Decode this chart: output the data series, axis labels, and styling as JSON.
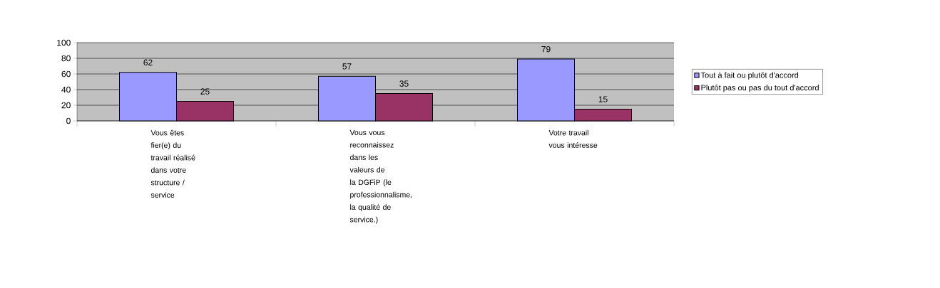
{
  "chart_data": {
    "type": "bar",
    "categories": [
      "Vous êtes fier(e) du travail réalisé dans votre structure / service",
      "Vous vous reconnaissez dans les valeurs de la DGFiP (le professionnalisme, la qualité de service.)",
      "Votre travail vous intéresse"
    ],
    "series": [
      {
        "name": "Tout à fait ou plutôt d'accord",
        "color": "#9999ff",
        "values": [
          62,
          57,
          79
        ]
      },
      {
        "name": "Plutôt pas ou pas du tout d'accord",
        "color": "#993366",
        "values": [
          25,
          35,
          15
        ]
      }
    ],
    "ylim": [
      0,
      100
    ],
    "yticks": [
      0,
      20,
      40,
      60,
      80,
      100
    ],
    "grid": "y",
    "legend": "right",
    "data_labels": true
  }
}
